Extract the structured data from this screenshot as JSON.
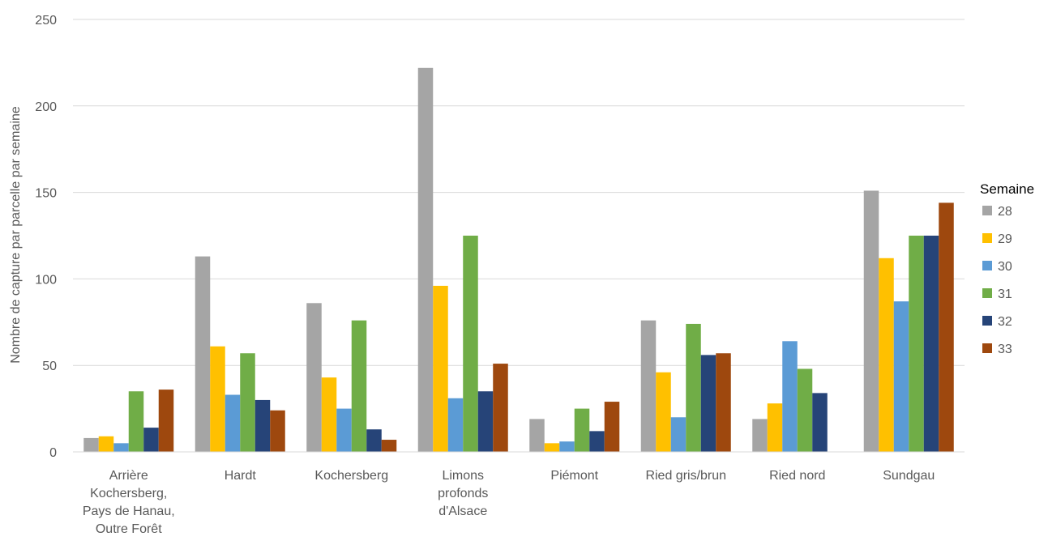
{
  "chart_data": {
    "type": "bar",
    "title": "",
    "xlabel": "",
    "ylabel": "Nombre de capture par parcelle par semaine",
    "ylim": [
      0,
      250
    ],
    "yticks": [
      0,
      50,
      100,
      150,
      200,
      250
    ],
    "grid": true,
    "legend_position": "right",
    "legend_title": "Semaine",
    "categories": [
      [
        "Arrière",
        "Kochersberg,",
        "Pays de Hanau,",
        "Outre Forêt"
      ],
      [
        "Hardt"
      ],
      [
        "Kochersberg"
      ],
      [
        "Limons",
        "profonds",
        "d'Alsace"
      ],
      [
        "Piémont"
      ],
      [
        "Ried gris/brun"
      ],
      [
        "Ried nord"
      ],
      [
        "Sundgau"
      ]
    ],
    "series": [
      {
        "name": "28",
        "color": "#A5A5A5",
        "values": [
          8,
          113,
          86,
          222,
          19,
          76,
          19,
          151
        ]
      },
      {
        "name": "29",
        "color": "#FFC000",
        "values": [
          9,
          61,
          43,
          96,
          5,
          46,
          28,
          112
        ]
      },
      {
        "name": "30",
        "color": "#5B9BD5",
        "values": [
          5,
          33,
          25,
          31,
          6,
          20,
          64,
          87
        ]
      },
      {
        "name": "31",
        "color": "#70AD47",
        "values": [
          35,
          57,
          76,
          125,
          25,
          74,
          48,
          125
        ]
      },
      {
        "name": "32",
        "color": "#264478",
        "values": [
          14,
          30,
          13,
          35,
          12,
          56,
          34,
          125
        ]
      },
      {
        "name": "33",
        "color": "#9E480E",
        "values": [
          36,
          24,
          7,
          51,
          29,
          57,
          0,
          144
        ]
      }
    ]
  }
}
